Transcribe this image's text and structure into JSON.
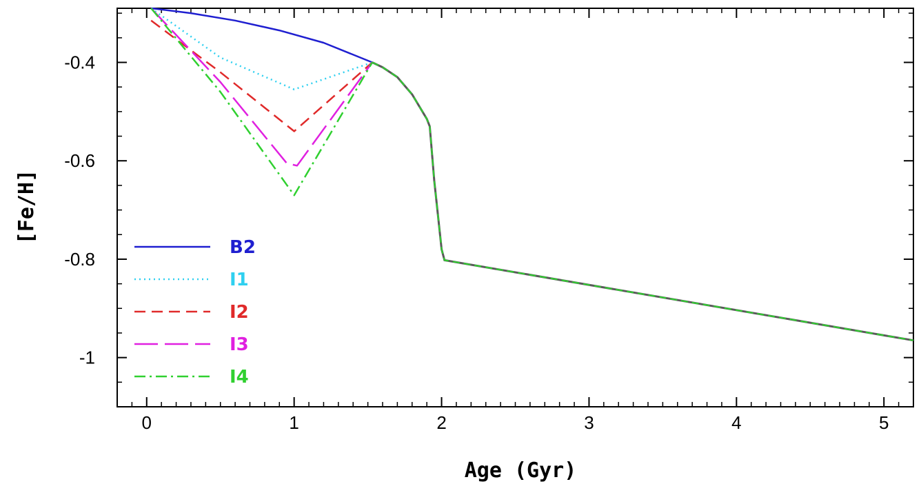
{
  "chart_data": {
    "type": "line",
    "title": "",
    "xlabel": "Age (Gyr)",
    "ylabel": "[Fe/H]",
    "xlim": [
      -0.2,
      5.2
    ],
    "ylim": [
      -1.1,
      -0.29
    ],
    "x_ticks": [
      0,
      1,
      2,
      3,
      4,
      5
    ],
    "x_tick_labels": [
      "0",
      "1",
      "2",
      "3",
      "4",
      "5"
    ],
    "y_ticks": [
      -0.4,
      -0.6,
      -0.8,
      -1.0
    ],
    "y_tick_labels": [
      "-0.4",
      "-0.6",
      "-0.8",
      "-1"
    ],
    "grid": false,
    "legend_position": "bottom-left",
    "common_tail": {
      "x": [
        1.53,
        1.6,
        1.7,
        1.8,
        1.9,
        1.92,
        1.95,
        2.0,
        2.02,
        5.2
      ],
      "y": [
        -0.4,
        -0.41,
        -0.43,
        -0.465,
        -0.515,
        -0.53,
        -0.64,
        -0.78,
        -0.802,
        -0.965
      ]
    },
    "series": [
      {
        "name": "B2",
        "color": "#1f1fd0",
        "dash": "solid",
        "x": [
          0.03,
          0.3,
          0.6,
          0.9,
          1.2,
          1.53
        ],
        "y": [
          -0.29,
          -0.3,
          -0.315,
          -0.335,
          -0.36,
          -0.4
        ]
      },
      {
        "name": "I1",
        "color": "#2fd0f0",
        "dash": "dotted",
        "x": [
          0.03,
          0.5,
          1.0,
          1.53
        ],
        "y": [
          -0.29,
          -0.39,
          -0.455,
          -0.4
        ]
      },
      {
        "name": "I2",
        "color": "#e02a2a",
        "dash": "dashed",
        "x": [
          0.03,
          0.5,
          1.0,
          1.53
        ],
        "y": [
          -0.315,
          -0.42,
          -0.54,
          -0.4
        ]
      },
      {
        "name": "I3",
        "color": "#e020e0",
        "dash": "longdash",
        "x": [
          0.03,
          0.5,
          0.95,
          1.02,
          1.53
        ],
        "y": [
          -0.29,
          -0.44,
          -0.605,
          -0.61,
          -0.4
        ]
      },
      {
        "name": "I4",
        "color": "#30d030",
        "dash": "dashdot",
        "x": [
          0.03,
          0.5,
          1.0,
          1.53
        ],
        "y": [
          -0.29,
          -0.46,
          -0.67,
          -0.4
        ]
      }
    ]
  }
}
